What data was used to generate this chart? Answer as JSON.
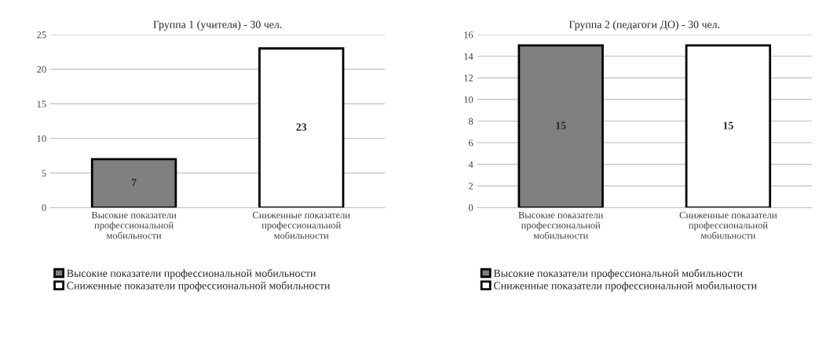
{
  "chart_data": [
    {
      "type": "bar",
      "title": "Группа 1 (учителя) - 30 чел.",
      "categories": [
        "Высокие показатели\nпрофессиональной\nмобильности",
        "Сниженные показатели\nпрофессиональной\nмобильности"
      ],
      "series": [
        {
          "name": "Высокие показатели профессиональной мобильности",
          "color": "#808080",
          "values": [
            7,
            null
          ]
        },
        {
          "name": "Сниженные показатели профессиональной мобильности",
          "color": "#ffffff",
          "values": [
            null,
            23
          ]
        }
      ],
      "ylim": [
        0,
        25
      ],
      "yticks": [
        0,
        5,
        10,
        15,
        20,
        25
      ],
      "grid": "y",
      "data_labels": true,
      "legend": "bottom left"
    },
    {
      "type": "bar",
      "title": "Группа 2 (педагоги ДО) - 30 чел.",
      "categories": [
        "Высокие показатели\nпрофессиональной\nмобильности",
        "Сниженные показатели\nпрофессиональной\nмобильности"
      ],
      "series": [
        {
          "name": "Высокие показатели профессиональной мобильности",
          "color": "#808080",
          "values": [
            15,
            null
          ]
        },
        {
          "name": "Сниженные показатели профессиональной мобильности",
          "color": "#ffffff",
          "values": [
            null,
            15
          ]
        }
      ],
      "ylim": [
        0,
        16
      ],
      "yticks": [
        0,
        2,
        4,
        6,
        8,
        10,
        12,
        14,
        16
      ],
      "grid": "y",
      "data_labels": true,
      "legend": "bottom left"
    }
  ]
}
